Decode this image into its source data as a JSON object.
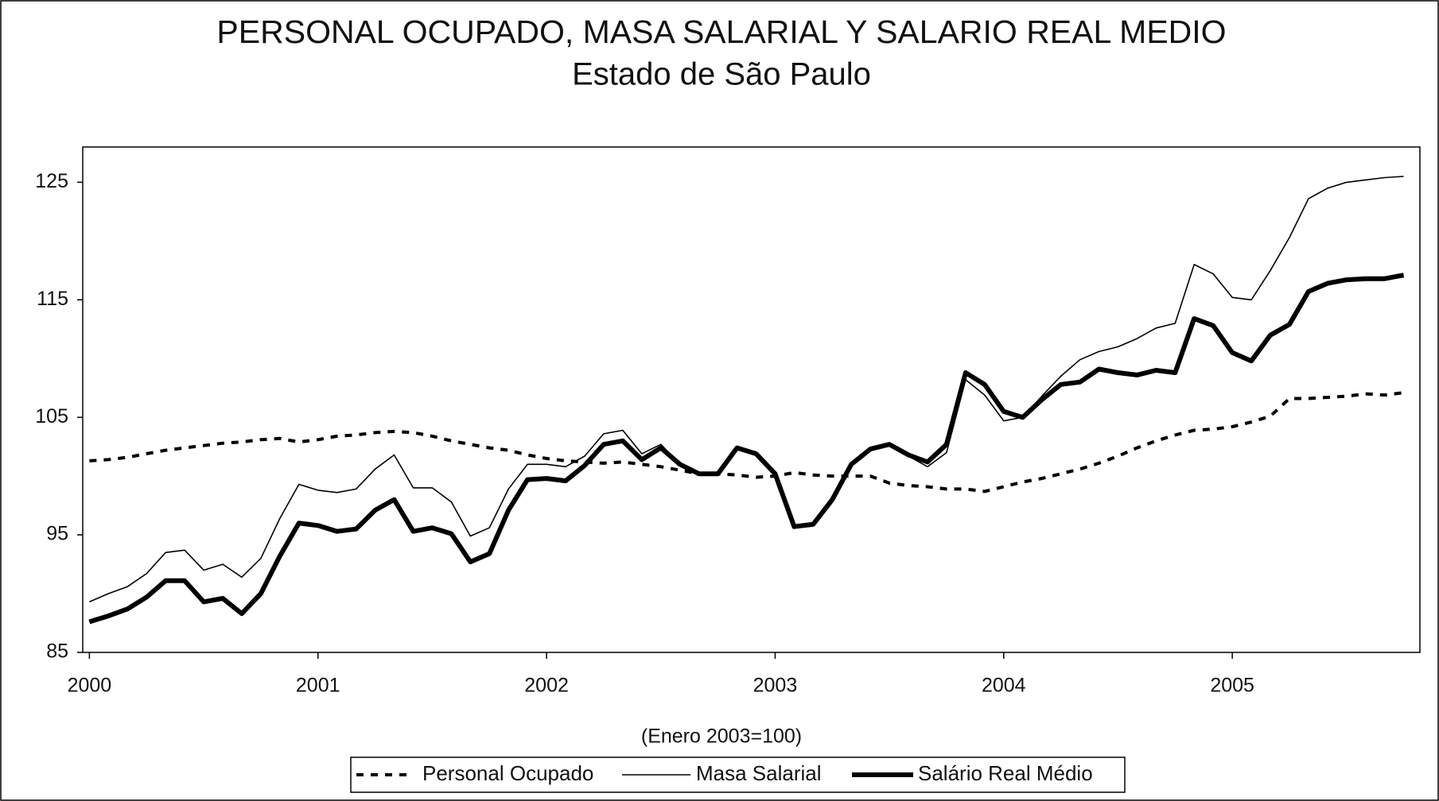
{
  "chart_data": {
    "type": "line",
    "title": "PERSONAL OCUPADO, MASA SALARIAL Y SALARIO REAL MEDIO",
    "subtitle": "Estado de São Paulo",
    "note": "(Enero 2003=100)",
    "categories": [
      "2000",
      null,
      null,
      null,
      null,
      null,
      null,
      null,
      null,
      null,
      null,
      null,
      "2001",
      null,
      null,
      null,
      null,
      null,
      null,
      null,
      null,
      null,
      null,
      null,
      "2002",
      null,
      null,
      null,
      null,
      null,
      null,
      null,
      null,
      null,
      null,
      null,
      "2003",
      null,
      null,
      null,
      null,
      null,
      null,
      null,
      null,
      null,
      null,
      null,
      "2004",
      null,
      null,
      null,
      null,
      null,
      null,
      null,
      null,
      null,
      null,
      null,
      "2005",
      null,
      null,
      null,
      null,
      null,
      null,
      null,
      null,
      null
    ],
    "ylim": [
      85,
      128
    ],
    "yticks": [
      85,
      95,
      105,
      115,
      125
    ],
    "grid": false,
    "series": [
      {
        "name": "Personal Ocupado",
        "color": "#000000",
        "style": "dashed",
        "line_width": 4,
        "values": [
          101.3,
          101.4,
          101.6,
          101.9,
          102.2,
          102.4,
          102.6,
          102.8,
          102.9,
          103.1,
          103.2,
          102.9,
          103.1,
          103.4,
          103.5,
          103.7,
          103.8,
          103.7,
          103.4,
          103.0,
          102.7,
          102.4,
          102.2,
          101.8,
          101.5,
          101.3,
          101.2,
          101.1,
          101.2,
          101.0,
          100.8,
          100.5,
          100.2,
          100.2,
          100.1,
          99.9,
          100.0,
          100.3,
          100.1,
          100.0,
          100.0,
          100.0,
          99.4,
          99.2,
          99.1,
          98.9,
          98.9,
          98.7,
          99.1,
          99.5,
          99.8,
          100.2,
          100.6,
          101.1,
          101.7,
          102.4,
          103.0,
          103.5,
          103.9,
          104.0,
          104.2,
          104.6,
          105.1,
          106.6,
          106.6,
          106.7,
          106.8,
          107.0,
          106.9,
          107.1
        ]
      },
      {
        "name": "Masa Salarial",
        "color": "#000000",
        "style": "solid",
        "line_width": 1.6,
        "values": [
          89.3,
          90.0,
          90.6,
          91.7,
          93.5,
          93.7,
          92.0,
          92.5,
          91.4,
          93.0,
          96.4,
          99.3,
          98.8,
          98.6,
          98.9,
          100.6,
          101.8,
          99.0,
          99.0,
          97.8,
          94.9,
          95.6,
          98.9,
          101.0,
          101.0,
          100.8,
          101.7,
          103.6,
          103.9,
          101.9,
          102.7,
          101.0,
          100.2,
          100.2,
          102.4,
          102.0,
          100.3,
          95.8,
          95.9,
          98.1,
          101.1,
          102.3,
          102.8,
          101.7,
          100.8,
          102.0,
          108.2,
          106.9,
          104.7,
          105.0,
          106.8,
          108.5,
          109.9,
          110.6,
          111.0,
          111.7,
          112.6,
          113.0,
          118.0,
          117.2,
          115.2,
          115.0,
          117.5,
          120.3,
          123.6,
          124.5,
          125.0,
          125.2,
          125.4,
          125.5
        ]
      },
      {
        "name": "Salário Real Médio",
        "color": "#000000",
        "style": "solid",
        "line_width": 6,
        "values": [
          87.6,
          88.1,
          88.7,
          89.7,
          91.1,
          91.1,
          89.3,
          89.6,
          88.3,
          90.0,
          93.2,
          96.0,
          95.8,
          95.3,
          95.5,
          97.1,
          98.0,
          95.3,
          95.6,
          95.1,
          92.7,
          93.4,
          97.1,
          99.7,
          99.8,
          99.6,
          100.9,
          102.7,
          103.0,
          101.4,
          102.4,
          101.0,
          100.2,
          100.2,
          102.4,
          101.9,
          100.2,
          95.7,
          95.9,
          98.0,
          101.0,
          102.3,
          102.7,
          101.8,
          101.2,
          102.7,
          108.8,
          107.8,
          105.5,
          105.0,
          106.5,
          107.8,
          108.0,
          109.1,
          108.8,
          108.6,
          109.0,
          108.8,
          113.4,
          112.8,
          110.5,
          109.8,
          112.0,
          112.9,
          115.7,
          116.4,
          116.7,
          116.8,
          116.8,
          117.1
        ]
      }
    ]
  }
}
